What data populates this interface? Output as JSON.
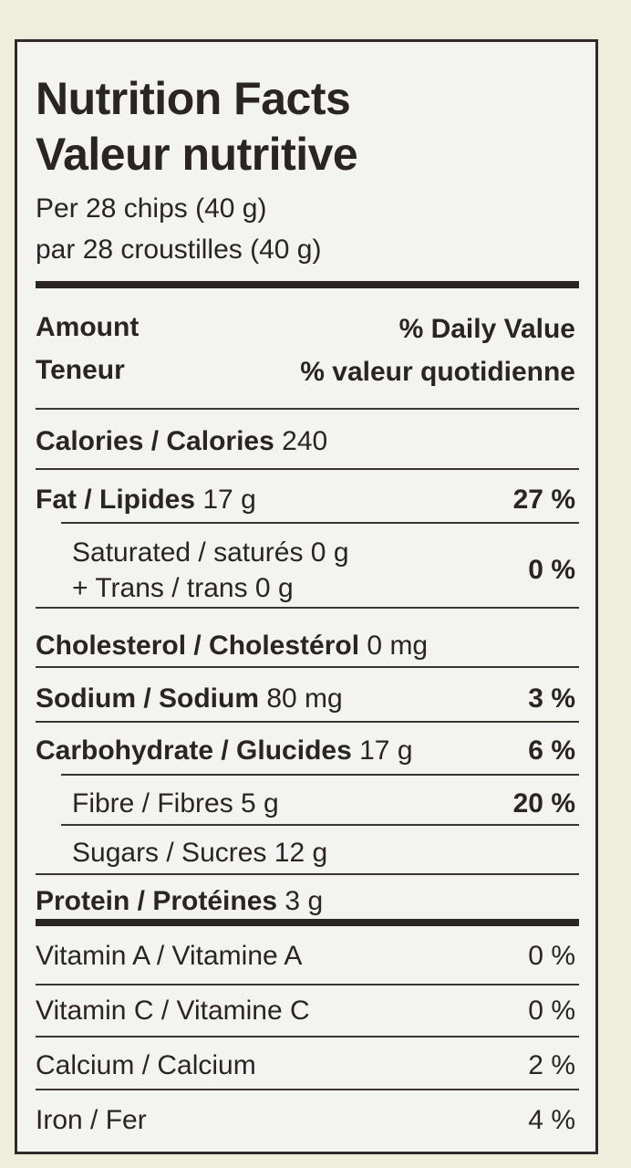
{
  "title_en": "Nutrition Facts",
  "title_fr": "Valeur nutritive",
  "serving_en": "Per 28 chips (40 g)",
  "serving_fr": "par 28 croustilles (40 g)",
  "header": {
    "amount": "Amount",
    "teneur": "Teneur",
    "dv_en": "% Daily Value",
    "dv_fr": "% valeur quotidienne"
  },
  "rows": [
    {
      "label": "Calories / Calories",
      "amount": "240",
      "dv": ""
    },
    {
      "label": "Fat / Lipides",
      "amount": "17 g",
      "dv": "27 %"
    },
    {
      "label": "Saturated / saturés 0 g",
      "label2": "+ Trans / trans 0 g",
      "dv": "0 %"
    },
    {
      "label": "Cholesterol / Cholestérol",
      "amount": "0 mg",
      "dv": ""
    },
    {
      "label": "Sodium / Sodium",
      "amount": "80 mg",
      "dv": "3 %"
    },
    {
      "label": "Carbohydrate / Glucides",
      "amount": "17 g",
      "dv": "6 %"
    },
    {
      "label": "Fibre / Fibres 5 g",
      "dv": "20 %"
    },
    {
      "label": "Sugars / Sucres 12 g",
      "dv": ""
    },
    {
      "label": "Protein / Protéines",
      "amount": "3 g",
      "dv": ""
    },
    {
      "label": "Vitamin A / Vitamine A",
      "dv": "0 %"
    },
    {
      "label": "Vitamin C / Vitamine C",
      "dv": "0 %"
    },
    {
      "label": "Calcium / Calcium",
      "dv": "2 %"
    },
    {
      "label": "Iron / Fer",
      "dv": "4 %"
    }
  ]
}
